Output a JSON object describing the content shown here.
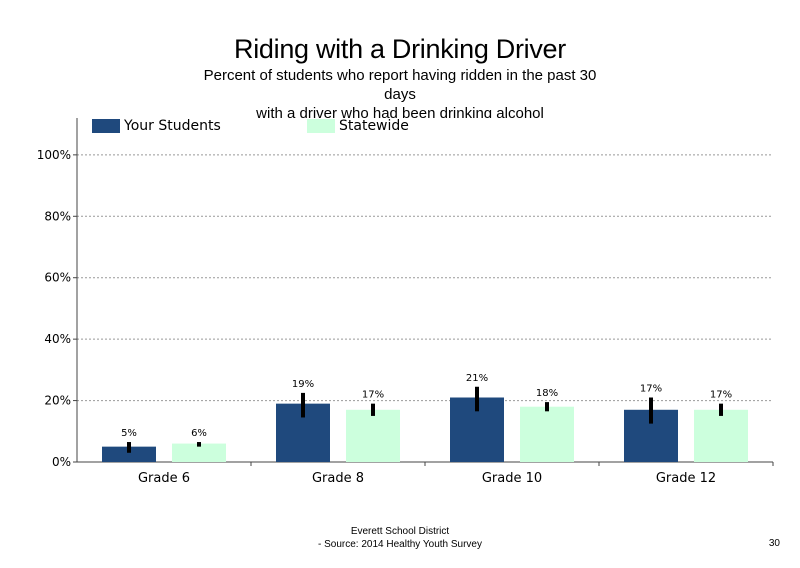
{
  "title": "Riding with a Drinking Driver",
  "subtitle_lines": [
    "Percent of students who report having ridden in the past 30",
    "days",
    "with a driver who had been drinking alcohol"
  ],
  "footer": {
    "line1": "Everett School District",
    "line2": "- Source: 2014 Healthy Youth Survey"
  },
  "page_number": "30",
  "colors": {
    "your_students": "#1f497d",
    "statewide": "#ccffdd",
    "error_bar": "#000000",
    "grid": "#999999"
  },
  "chart_data": {
    "type": "bar",
    "categories": [
      "Grade 6",
      "Grade 8",
      "Grade 10",
      "Grade 12"
    ],
    "series": [
      {
        "name": "Your Students",
        "values": [
          5,
          19,
          21,
          17
        ],
        "labels": [
          "5%",
          "19%",
          "21%",
          "17%"
        ],
        "ci_low": [
          3,
          14.5,
          16.5,
          12.5
        ],
        "ci_high": [
          6.5,
          22.5,
          24.5,
          21
        ]
      },
      {
        "name": "Statewide",
        "values": [
          6,
          17,
          18,
          17
        ],
        "labels": [
          "6%",
          "17%",
          "18%",
          "17%"
        ],
        "ci_low": [
          5,
          15,
          16.5,
          15
        ],
        "ci_high": [
          6.5,
          19,
          19.5,
          19
        ]
      }
    ],
    "y_ticks": [
      0,
      20,
      40,
      60,
      80,
      100
    ],
    "y_tick_labels": [
      "0%",
      "20%",
      "40%",
      "60%",
      "80%",
      "100%"
    ],
    "ylim": [
      0,
      112
    ],
    "grid": "dotted-horizontal",
    "legend": "top-left"
  }
}
